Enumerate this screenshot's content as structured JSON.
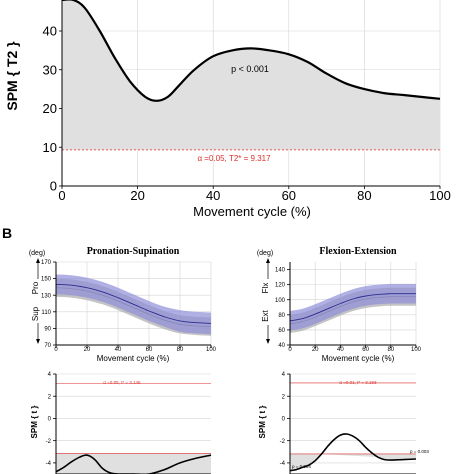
{
  "colors": {
    "curve": "#000000",
    "shade": "#e0e0e0",
    "threshold": "#d9302c",
    "band_top": "#8f8fd8",
    "band_bottom": "#b0b0b0",
    "mean_line": "#2c2c90",
    "grid": "#d4d4d4",
    "axis": "#000000"
  },
  "chart_data": [
    {
      "id": "A",
      "type": "line",
      "xlabel": "Movement cycle (%)",
      "ylabel": "SPM { T2 }",
      "xlim": [
        0,
        100
      ],
      "ylim": [
        0,
        48
      ],
      "xticks": [
        0,
        20,
        40,
        60,
        80,
        100
      ],
      "yticks": [
        0,
        10,
        20,
        30,
        40
      ],
      "grid": true,
      "series": [
        {
          "x": [
            0,
            3,
            6,
            10,
            14,
            18,
            22,
            25,
            28,
            31,
            35,
            40,
            45,
            50,
            55,
            60,
            65,
            70,
            75,
            80,
            85,
            90,
            95,
            100
          ],
          "values": [
            52,
            49,
            46,
            40,
            33,
            27,
            23,
            22,
            23,
            26,
            30,
            33.5,
            35,
            35.5,
            35,
            34,
            32,
            29,
            26.5,
            25,
            24,
            23.5,
            23,
            22.5
          ]
        }
      ],
      "threshold": 9.317,
      "threshold_label": "α =0.05,   T2* = 9.317",
      "annotation": "p < 0.001"
    },
    {
      "id": "B1",
      "type": "area",
      "panel_letter": "B",
      "title": "Pronation-Supination",
      "unit": "(deg)",
      "top_label": "Pro",
      "bottom_label": "Sup",
      "xlabel": "Movement cycle (%)",
      "xlim": [
        0,
        100
      ],
      "ylim": [
        70,
        170
      ],
      "xticks": [
        0,
        20,
        40,
        60,
        80,
        100
      ],
      "yticks": [
        70,
        90,
        110,
        130,
        150,
        170
      ],
      "grid": true,
      "x": [
        0,
        10,
        20,
        30,
        40,
        50,
        60,
        70,
        80,
        90,
        100
      ],
      "band_top": {
        "upper": [
          155,
          154,
          151,
          146,
          139,
          131,
          123,
          116,
          112,
          110,
          109
        ],
        "mean": [
          143,
          142,
          139,
          134,
          127,
          119,
          111,
          104,
          99,
          97,
          96
        ],
        "lower": [
          131,
          130,
          127,
          122,
          115,
          107,
          99,
          92,
          86,
          84,
          83
        ]
      },
      "band_bottom": {
        "upper": [
          150,
          149,
          146,
          141,
          134,
          126,
          118,
          111,
          106,
          104,
          103
        ],
        "mean": [
          139,
          138,
          135,
          130,
          123,
          115,
          107,
          100,
          95,
          93,
          92
        ],
        "lower": [
          128,
          127,
          124,
          119,
          112,
          104,
          96,
          89,
          84,
          82,
          81
        ]
      }
    },
    {
      "id": "B2",
      "type": "area",
      "title": "Flexion-Extension",
      "unit": "(deg)",
      "top_label": "Flx",
      "bottom_label": "Ext",
      "xlabel": "Movement cycle (%)",
      "xlim": [
        0,
        100
      ],
      "ylim": [
        40,
        150
      ],
      "xticks": [
        0,
        20,
        40,
        60,
        80,
        100
      ],
      "yticks": [
        40,
        60,
        80,
        100,
        120,
        140
      ],
      "grid": true,
      "x": [
        0,
        10,
        20,
        30,
        40,
        50,
        60,
        70,
        80,
        90,
        100
      ],
      "band_top": {
        "upper": [
          85,
          88,
          94,
          101,
          108,
          114,
          118,
          120,
          121,
          121,
          121
        ],
        "mean": [
          72,
          75,
          81,
          88,
          95,
          101,
          105,
          107,
          108,
          108,
          108
        ],
        "lower": [
          59,
          62,
          68,
          75,
          82,
          88,
          92,
          94,
          95,
          95,
          95
        ]
      },
      "band_bottom": {
        "upper": [
          80,
          83,
          89,
          96,
          103,
          109,
          113,
          115,
          116,
          116,
          116
        ],
        "mean": [
          68,
          71,
          77,
          84,
          91,
          97,
          101,
          103,
          104,
          104,
          104
        ],
        "lower": [
          56,
          59,
          65,
          72,
          79,
          85,
          89,
          91,
          92,
          92,
          92
        ]
      }
    },
    {
      "id": "B3",
      "type": "line",
      "ylabel": "SPM { t }",
      "xlim": [
        0,
        100
      ],
      "ylim": [
        -5,
        4
      ],
      "yticks": [
        -4,
        -2,
        0,
        2,
        4
      ],
      "grid": true,
      "series": [
        {
          "x": [
            0,
            5,
            10,
            15,
            20,
            25,
            30,
            35,
            40,
            50,
            60,
            70,
            80,
            90,
            100
          ],
          "values": [
            -4.8,
            -4.4,
            -3.9,
            -3.5,
            -3.3,
            -3.7,
            -4.5,
            -4.9,
            -5.1,
            -5.2,
            -5.0,
            -4.6,
            -4.0,
            -3.6,
            -3.3
          ]
        }
      ],
      "threshold_upper": 3.145,
      "threshold_lower": -3.145,
      "threshold_label": "α =0.05,   t* = 3.145"
    },
    {
      "id": "B4",
      "type": "line",
      "ylabel": "SPM { t }",
      "xlim": [
        0,
        100
      ],
      "ylim": [
        -5,
        4
      ],
      "yticks": [
        -4,
        -2,
        0,
        2,
        4
      ],
      "grid": true,
      "series": [
        {
          "x": [
            0,
            5,
            10,
            15,
            20,
            25,
            30,
            35,
            40,
            45,
            50,
            55,
            60,
            65,
            70,
            75,
            80,
            90,
            100
          ],
          "values": [
            -4.7,
            -4.6,
            -4.4,
            -4.2,
            -3.8,
            -3.2,
            -2.5,
            -1.9,
            -1.5,
            -1.4,
            -1.6,
            -2.0,
            -2.6,
            -3.1,
            -3.5,
            -3.7,
            -3.75,
            -3.7,
            -3.65
          ]
        }
      ],
      "threshold_upper": 3.193,
      "threshold_lower": -3.193,
      "threshold_label": "α =0.01,   t* = 3.193",
      "annotations": [
        "p = 0.004",
        "p = 0.003"
      ]
    }
  ]
}
